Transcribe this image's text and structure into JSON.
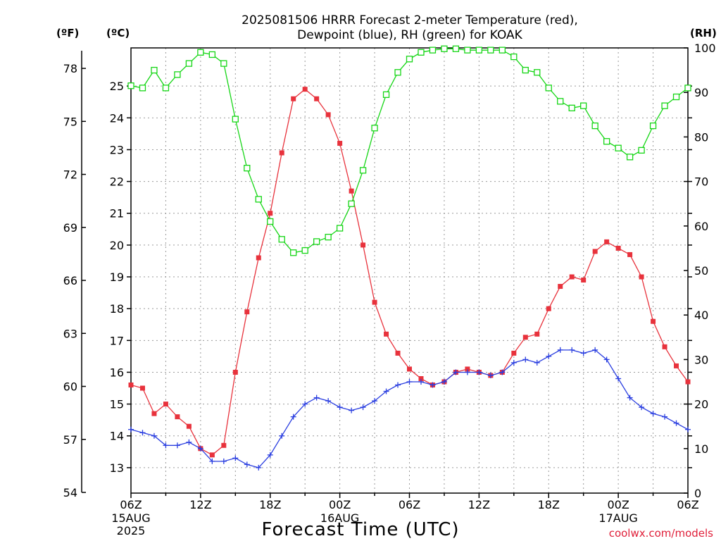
{
  "chart_data": {
    "type": "line",
    "title": "2025081506 HRRR Forecast 2-meter Temperature (red),",
    "subtitle": "Dewpoint (blue), RH (green) for KOAK",
    "xlabel": "Forecast Time (UTC)",
    "credit": "coolwx.com/models",
    "axis_units": {
      "fahrenheit": "(ºF)",
      "celsius": "(ºC)",
      "rh": "(RH)"
    },
    "x_ticks": [
      {
        "hour": 0,
        "label": "06Z"
      },
      {
        "hour": 6,
        "label": "12Z"
      },
      {
        "hour": 12,
        "label": "18Z"
      },
      {
        "hour": 18,
        "label": "00Z"
      },
      {
        "hour": 24,
        "label": "06Z"
      },
      {
        "hour": 30,
        "label": "12Z"
      },
      {
        "hour": 36,
        "label": "18Z"
      },
      {
        "hour": 42,
        "label": "00Z"
      },
      {
        "hour": 48,
        "label": "06Z"
      }
    ],
    "date_labels": [
      {
        "hour": 0,
        "line1": "15AUG",
        "line2": "2025"
      },
      {
        "hour": 18,
        "line1": "16AUG",
        "line2": ""
      },
      {
        "hour": 42,
        "line1": "17AUG",
        "line2": ""
      }
    ],
    "xlim": [
      0,
      48
    ],
    "y_celsius": {
      "lim": [
        12.2,
        26.2
      ],
      "ticks": [
        13,
        14,
        15,
        16,
        17,
        18,
        19,
        20,
        21,
        22,
        23,
        24,
        25
      ]
    },
    "y_fahrenheit": {
      "lim": [
        54,
        79
      ],
      "ticks": [
        54,
        57,
        60,
        63,
        66,
        69,
        72,
        75,
        78
      ]
    },
    "y_rh": {
      "lim": [
        0,
        100
      ],
      "ticks": [
        0,
        10,
        20,
        30,
        40,
        50,
        60,
        70,
        80,
        90,
        100
      ]
    },
    "grid": true,
    "hours": [
      0,
      1,
      2,
      3,
      4,
      5,
      6,
      7,
      8,
      9,
      10,
      11,
      12,
      13,
      14,
      15,
      16,
      17,
      18,
      19,
      20,
      21,
      22,
      23,
      24,
      25,
      26,
      27,
      28,
      29,
      30,
      31,
      32,
      33,
      34,
      35,
      36,
      37,
      38,
      39,
      40,
      41,
      42,
      43,
      44,
      45,
      46,
      47,
      48
    ],
    "series": [
      {
        "name": "Temperature",
        "axis": "celsius",
        "color": "#e8323c",
        "marker": "filled-square",
        "values": [
          15.6,
          15.5,
          14.7,
          15.0,
          14.6,
          14.3,
          13.6,
          13.4,
          13.7,
          16.0,
          17.9,
          19.6,
          21.0,
          22.9,
          24.6,
          24.9,
          24.6,
          24.1,
          23.2,
          21.7,
          20.0,
          18.2,
          17.2,
          16.6,
          16.1,
          15.8,
          15.6,
          15.7,
          16.0,
          16.1,
          16.0,
          15.9,
          16.0,
          16.6,
          17.1,
          17.2,
          18.0,
          18.7,
          19.0,
          18.9,
          19.8,
          20.1,
          19.9,
          19.7,
          19.0,
          17.6,
          16.8,
          16.2,
          15.7
        ]
      },
      {
        "name": "Dewpoint",
        "axis": "celsius",
        "color": "#2a3ee0",
        "marker": "plus",
        "values": [
          14.2,
          14.1,
          14.0,
          13.7,
          13.7,
          13.8,
          13.6,
          13.2,
          13.2,
          13.3,
          13.1,
          13.0,
          13.4,
          14.0,
          14.6,
          15.0,
          15.2,
          15.1,
          14.9,
          14.8,
          14.9,
          15.1,
          15.4,
          15.6,
          15.7,
          15.7,
          15.6,
          15.7,
          16.0,
          16.0,
          16.0,
          15.9,
          16.0,
          16.3,
          16.4,
          16.3,
          16.5,
          16.7,
          16.7,
          16.6,
          16.7,
          16.4,
          15.8,
          15.2,
          14.9,
          14.7,
          14.6,
          14.4,
          14.2
        ]
      },
      {
        "name": "RH",
        "axis": "rh",
        "color": "#16d616",
        "marker": "open-square",
        "values": [
          91.5,
          91.0,
          95.0,
          91.0,
          94.0,
          96.5,
          99.0,
          98.5,
          96.5,
          84.0,
          73.0,
          66.0,
          61.0,
          57.0,
          54.0,
          54.5,
          56.5,
          57.5,
          59.5,
          65.0,
          72.5,
          82.0,
          89.5,
          94.5,
          97.5,
          99.0,
          99.5,
          99.8,
          99.8,
          99.5,
          99.5,
          99.5,
          99.5,
          98.0,
          95.0,
          94.5,
          91.0,
          88.0,
          86.5,
          87.0,
          82.5,
          79.0,
          77.5,
          75.5,
          77.0,
          82.5,
          87.0,
          89.0,
          91.0
        ]
      }
    ]
  }
}
